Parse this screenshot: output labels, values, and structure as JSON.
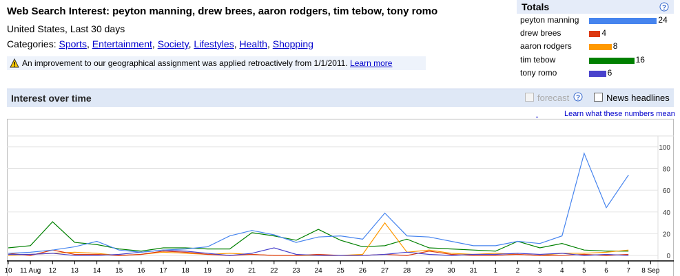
{
  "header": {
    "title": "Web Search Interest: peyton manning, drew brees, aaron rodgers, tim tebow, tony romo",
    "subtitle": "United States, Last 30 days",
    "categories_label": "Categories:",
    "categories": [
      "Sports",
      "Entertainment",
      "Society",
      "Lifestyles",
      "Health",
      "Shopping"
    ],
    "notice": "An improvement to our geographical assignment was applied retroactively from 1/1/2011.",
    "notice_link": "Learn more"
  },
  "totals": {
    "title": "Totals",
    "items": [
      {
        "name": "peyton manning",
        "value": 24,
        "color": "#4684ee"
      },
      {
        "name": "drew brees",
        "value": 4,
        "color": "#dc3912"
      },
      {
        "name": "aaron rodgers",
        "value": 8,
        "color": "#ff9900"
      },
      {
        "name": "tim tebow",
        "value": 16,
        "color": "#008000"
      },
      {
        "name": "tony romo",
        "value": 6,
        "color": "#4942cc"
      }
    ]
  },
  "toolbar": {
    "title": "Interest over time",
    "forecast": "forecast",
    "news": "News headlines",
    "link": "Learn what these numbers mean"
  },
  "chart_data": {
    "type": "line",
    "categories": [
      "10",
      "11 Aug",
      "12",
      "13",
      "14",
      "15",
      "16",
      "17",
      "18",
      "19",
      "20",
      "21",
      "22",
      "23",
      "24",
      "25",
      "26",
      "27",
      "28",
      "29",
      "30",
      "31",
      "1",
      "2",
      "3",
      "4",
      "5",
      "6",
      "7",
      "8 Sep"
    ],
    "series": [
      {
        "name": "tim tebow",
        "color": "#008000",
        "values": [
          7,
          9,
          31,
          12,
          10,
          6,
          4,
          7,
          7,
          6,
          6,
          21,
          18,
          14,
          24,
          14,
          8,
          9,
          15,
          7,
          6,
          5,
          4,
          13,
          7,
          11,
          5,
          4,
          4,
          null
        ]
      },
      {
        "name": "aaron rodgers",
        "color": "#ff9900",
        "values": [
          0,
          1,
          2,
          3,
          2,
          0,
          1,
          3,
          2,
          1,
          2,
          1,
          0,
          0,
          0,
          0,
          1,
          30,
          3,
          5,
          2,
          1,
          2,
          1,
          0,
          2,
          2,
          3,
          5,
          null
        ]
      },
      {
        "name": "drew brees",
        "color": "#dc3912",
        "values": [
          2,
          0,
          5,
          1,
          1,
          0,
          1,
          4,
          3,
          1,
          0,
          1,
          0,
          0,
          1,
          0,
          0,
          1,
          0,
          4,
          1,
          0,
          0,
          1,
          0,
          0,
          1,
          0,
          1,
          null
        ]
      },
      {
        "name": "tony romo",
        "color": "#4942cc",
        "values": [
          1,
          1,
          2,
          0,
          0,
          1,
          3,
          5,
          4,
          2,
          0,
          2,
          7,
          1,
          0,
          0,
          0,
          1,
          3,
          1,
          0,
          1,
          1,
          2,
          1,
          2,
          0,
          1,
          0,
          null
        ]
      },
      {
        "name": "peyton manning",
        "color": "#4684ee",
        "values": [
          2,
          3,
          5,
          8,
          13,
          5,
          3,
          5,
          6,
          8,
          18,
          23,
          19,
          12,
          17,
          18,
          15,
          39,
          18,
          17,
          13,
          9,
          9,
          13,
          11,
          18,
          94,
          44,
          74,
          null
        ]
      }
    ],
    "ylim": [
      -5,
      110
    ],
    "yticks": [
      0,
      20,
      40,
      60,
      80,
      100
    ],
    "grid": true
  }
}
